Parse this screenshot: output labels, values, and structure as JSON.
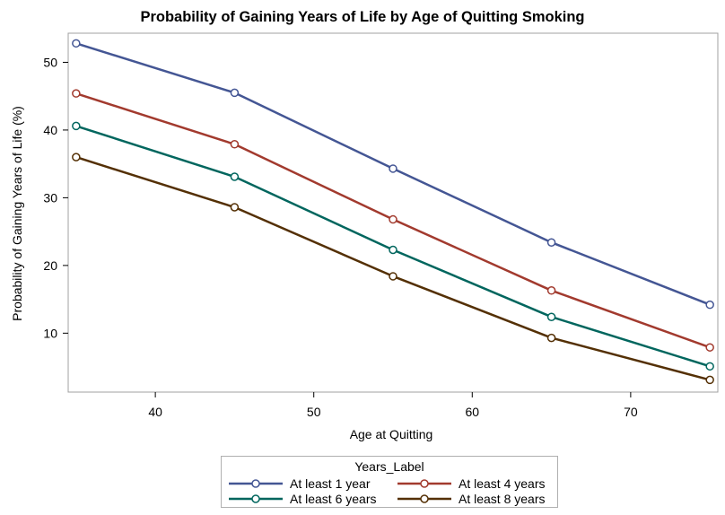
{
  "chart_data": {
    "type": "line",
    "title": "Probability of Gaining Years of Life by Age of Quitting Smoking",
    "xlabel": "Age at Quitting",
    "ylabel": "Probability of Gaining Years of Life (%)",
    "x": [
      35,
      45,
      55,
      65,
      75
    ],
    "xlim": [
      34.5,
      75.5
    ],
    "ylim": [
      1.3,
      54.3
    ],
    "xticks": [
      40,
      50,
      60,
      70
    ],
    "yticks": [
      10,
      20,
      30,
      40,
      50
    ],
    "legend_title": "Years_Label",
    "legend_position": "bottom",
    "series": [
      {
        "name": "At least 1 year",
        "color": "#445694",
        "values": [
          52.8,
          45.5,
          34.3,
          23.4,
          14.2
        ]
      },
      {
        "name": "At least 4 years",
        "color": "#a23a2e",
        "values": [
          45.4,
          37.9,
          26.8,
          16.3,
          7.9
        ]
      },
      {
        "name": "At least 6 years",
        "color": "#01665e",
        "values": [
          40.6,
          33.1,
          22.3,
          12.4,
          5.1
        ]
      },
      {
        "name": "At least 8 years",
        "color": "#543005",
        "values": [
          36.0,
          28.6,
          18.4,
          9.3,
          3.1
        ]
      }
    ]
  }
}
